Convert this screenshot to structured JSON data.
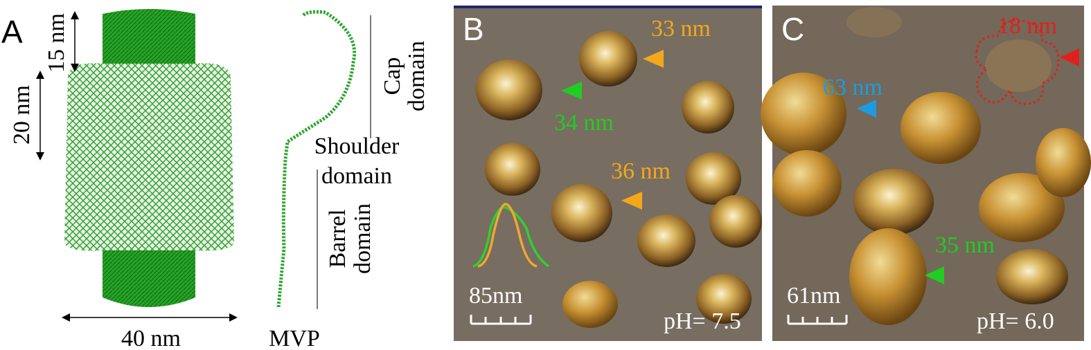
{
  "panel_a": {
    "label": "A",
    "cap_height": "15 nm",
    "shoulder_height": "20 nm",
    "width": "40 nm",
    "monomer": "MVP",
    "domains": [
      {
        "lines": [
          "Cap",
          "domain"
        ]
      },
      {
        "lines": [
          "Shoulder",
          "domain"
        ]
      },
      {
        "lines": [
          "Barrel",
          "domain"
        ]
      }
    ]
  },
  "panel_b": {
    "label": "B",
    "annotations": [
      "33 nm",
      "34 nm",
      "36 nm"
    ],
    "scale_bar": "85nm",
    "condition": "pH= 7.5"
  },
  "panel_c": {
    "label": "C",
    "annotations": [
      "18 nm",
      "63 nm",
      "35 nm"
    ],
    "scale_bar": "61nm",
    "condition": "pH= 6.0"
  }
}
